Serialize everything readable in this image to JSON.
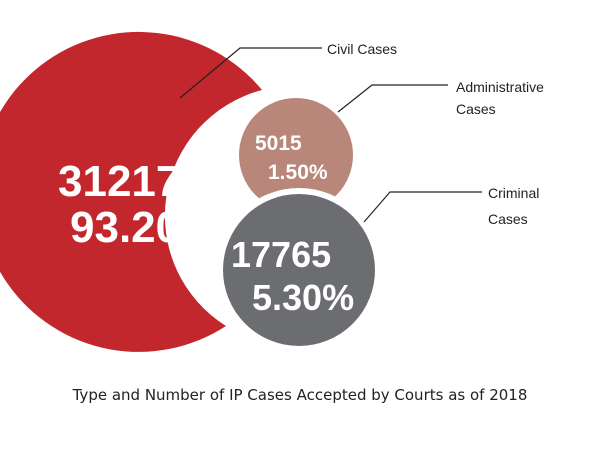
{
  "chart_data": {
    "type": "bubble",
    "title": "Type and Number of IP Cases Accepted by Courts as of 2018",
    "series": [
      {
        "name": "Civil Cases",
        "value": 312171,
        "value_label": "312171",
        "percent_label": "93.20%",
        "percent": 93.2,
        "color": "#c1272d"
      },
      {
        "name": "Administrative Cases",
        "name_lines": [
          "Administrative",
          "Cases"
        ],
        "value": 5015,
        "value_label": "5015",
        "percent_label": "1.50%",
        "percent": 1.5,
        "color": "#b9877a"
      },
      {
        "name": "Criminal Cases",
        "name_lines": [
          "Criminal",
          "Cases"
        ],
        "value": 17765,
        "value_label": "17765",
        "percent_label": "5.30%",
        "percent": 5.3,
        "color": "#6c6d70"
      }
    ]
  }
}
